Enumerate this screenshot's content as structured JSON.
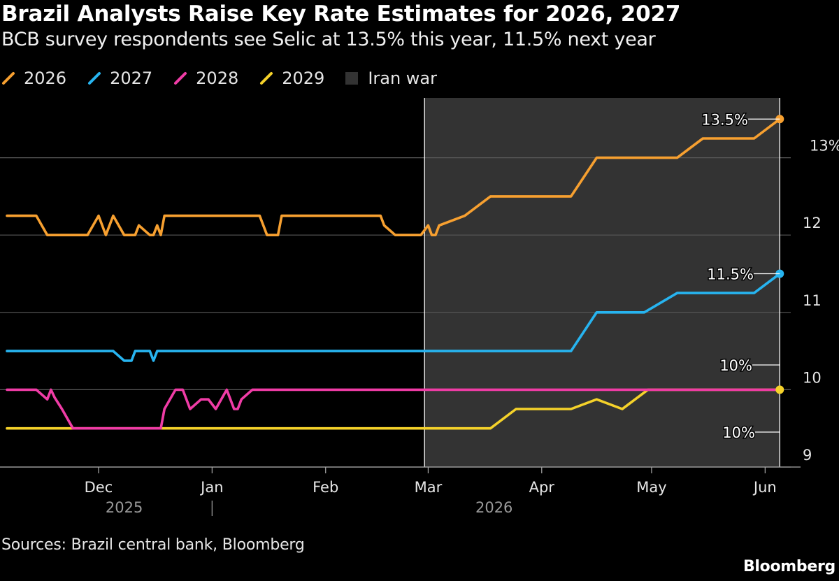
{
  "header": {
    "title": "Brazil Analysts Raise Key Rate Estimates for 2026, 2027",
    "subtitle": "BCB survey respondents see Selic at 13.5% this year, 11.5% next year"
  },
  "legend": [
    {
      "label": "2026",
      "color": "#f7a030"
    },
    {
      "label": "2027",
      "color": "#27b4f0"
    },
    {
      "label": "2028",
      "color": "#f03ca6"
    },
    {
      "label": "2029",
      "color": "#f5d22a"
    },
    {
      "label": "Iran war",
      "color": "#333333"
    }
  ],
  "footer": {
    "source": "Sources: Brazil central bank, Bloomberg",
    "brand": "Bloomberg"
  },
  "chart_data": {
    "type": "line",
    "title": "Brazil Analysts Raise Key Rate Estimates for 2026, 2027",
    "subtitle": "BCB survey respondents see Selic at 13.5% this year, 11.5% next year",
    "xlim": [
      "2025-11-06",
      "2026-06-08"
    ],
    "ylim": [
      9,
      13.5
    ],
    "y_axis_side": "right",
    "y_ticks": [
      {
        "value": 9,
        "label": "9"
      },
      {
        "value": 10,
        "label": "10"
      },
      {
        "value": 11,
        "label": "11"
      },
      {
        "value": 12,
        "label": "12"
      },
      {
        "value": 13,
        "label": "13%"
      }
    ],
    "x_ticks": [
      {
        "date": "2025-12-01",
        "label": "Dec"
      },
      {
        "date": "2026-01-01",
        "label": "Jan"
      },
      {
        "date": "2026-02-01",
        "label": "Feb"
      },
      {
        "date": "2026-03-01",
        "label": "Mar"
      },
      {
        "date": "2026-04-01",
        "label": "Apr"
      },
      {
        "date": "2026-05-01",
        "label": "May"
      },
      {
        "date": "2026-06-01",
        "label": "Jun"
      }
    ],
    "year_labels": [
      {
        "label": "2025",
        "date": "2025-12-08"
      },
      {
        "label": "2026",
        "date": "2026-03-19"
      }
    ],
    "year_separator": "2026-01-01",
    "grid": true,
    "shaded_region": {
      "label": "Iran war",
      "start": "2026-02-28",
      "end": "2026-06-05",
      "color": "#333333"
    },
    "series": [
      {
        "name": "2026",
        "color": "#f7a030",
        "points": [
          [
            "2025-11-06",
            12.25
          ],
          [
            "2025-11-14",
            12.25
          ],
          [
            "2025-11-17",
            12.0
          ],
          [
            "2025-11-28",
            12.0
          ],
          [
            "2025-12-01",
            12.25
          ],
          [
            "2025-12-03",
            12.0
          ],
          [
            "2025-12-05",
            12.25
          ],
          [
            "2025-12-08",
            12.0
          ],
          [
            "2025-12-11",
            12.0
          ],
          [
            "2025-12-12",
            12.125
          ],
          [
            "2025-12-15",
            12.0
          ],
          [
            "2025-12-16",
            12.0
          ],
          [
            "2025-12-17",
            12.125
          ],
          [
            "2025-12-18",
            12.0
          ],
          [
            "2025-12-19",
            12.25
          ],
          [
            "2026-01-14",
            12.25
          ],
          [
            "2026-01-16",
            12.0
          ],
          [
            "2026-01-19",
            12.0
          ],
          [
            "2026-01-20",
            12.25
          ],
          [
            "2026-02-16",
            12.25
          ],
          [
            "2026-02-17",
            12.125
          ],
          [
            "2026-02-20",
            12.0
          ],
          [
            "2026-02-27",
            12.0
          ],
          [
            "2026-03-01",
            12.125
          ],
          [
            "2026-03-02",
            12.0
          ],
          [
            "2026-03-03",
            12.0
          ],
          [
            "2026-03-04",
            12.125
          ],
          [
            "2026-03-11",
            12.25
          ],
          [
            "2026-03-18",
            12.5
          ],
          [
            "2026-04-09",
            12.5
          ],
          [
            "2026-04-16",
            13.0
          ],
          [
            "2026-05-08",
            13.0
          ],
          [
            "2026-05-15",
            13.25
          ],
          [
            "2026-05-29",
            13.25
          ],
          [
            "2026-06-05",
            13.5
          ]
        ]
      },
      {
        "name": "2027",
        "color": "#27b4f0",
        "points": [
          [
            "2025-11-06",
            10.5
          ],
          [
            "2025-12-05",
            10.5
          ],
          [
            "2025-12-08",
            10.375
          ],
          [
            "2025-12-10",
            10.375
          ],
          [
            "2025-12-11",
            10.5
          ],
          [
            "2025-12-15",
            10.5
          ],
          [
            "2025-12-16",
            10.375
          ],
          [
            "2025-12-17",
            10.5
          ],
          [
            "2026-04-09",
            10.5
          ],
          [
            "2026-04-16",
            11.0
          ],
          [
            "2026-04-29",
            11.0
          ],
          [
            "2026-05-08",
            11.25
          ],
          [
            "2026-05-29",
            11.25
          ],
          [
            "2026-06-05",
            11.5
          ]
        ]
      },
      {
        "name": "2028",
        "color": "#f03ca6",
        "points": [
          [
            "2025-11-06",
            10.0
          ],
          [
            "2025-11-14",
            10.0
          ],
          [
            "2025-11-17",
            9.875
          ],
          [
            "2025-11-18",
            10.0
          ],
          [
            "2025-11-19",
            9.9
          ],
          [
            "2025-11-21",
            9.75
          ],
          [
            "2025-11-24",
            9.5
          ],
          [
            "2025-12-18",
            9.5
          ],
          [
            "2025-12-19",
            9.75
          ],
          [
            "2025-12-22",
            10.0
          ],
          [
            "2025-12-24",
            10.0
          ],
          [
            "2025-12-26",
            9.75
          ],
          [
            "2025-12-29",
            9.875
          ],
          [
            "2025-12-31",
            9.875
          ],
          [
            "2026-01-02",
            9.75
          ],
          [
            "2026-01-05",
            10.0
          ],
          [
            "2026-01-07",
            9.75
          ],
          [
            "2026-01-08",
            9.75
          ],
          [
            "2026-01-09",
            9.875
          ],
          [
            "2026-01-12",
            10.0
          ],
          [
            "2026-06-05",
            10.0
          ]
        ]
      },
      {
        "name": "2029",
        "color": "#f5d22a",
        "points": [
          [
            "2025-11-06",
            9.5
          ],
          [
            "2026-03-18",
            9.5
          ],
          [
            "2026-03-25",
            9.75
          ],
          [
            "2026-04-09",
            9.75
          ],
          [
            "2026-04-16",
            9.875
          ],
          [
            "2026-04-23",
            9.75
          ],
          [
            "2026-04-30",
            10.0
          ],
          [
            "2026-06-05",
            10.0
          ]
        ]
      }
    ],
    "annotations": [
      {
        "text": "13.5%",
        "value": 13.5,
        "series": "2026"
      },
      {
        "text": "11.5%",
        "value": 11.5,
        "series": "2027"
      },
      {
        "text": "10%",
        "value": 10.0,
        "series": "2028"
      },
      {
        "text": "10%",
        "value": 10.0,
        "series": "2029"
      }
    ]
  }
}
